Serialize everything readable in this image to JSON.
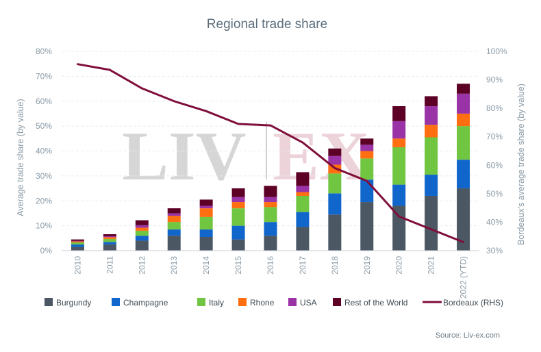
{
  "chart_data": {
    "type": "bar",
    "stacked": true,
    "title": "Regional trade share",
    "ylabel": "Average trade share (by value)",
    "y2label": "Bordeaux's average trade share (by value)",
    "source": "Source: Liv-ex.com",
    "watermark": {
      "left": "LIV",
      "right": "EX"
    },
    "categories": [
      "2010",
      "2011",
      "2012",
      "2013",
      "2014",
      "2015",
      "2016",
      "2017",
      "2018",
      "2019",
      "2020",
      "2021",
      "2022 (YTD)"
    ],
    "ylim": [
      0,
      80
    ],
    "y2lim": [
      30,
      100
    ],
    "yticks": [
      "0%",
      "10%",
      "20%",
      "30%",
      "40%",
      "50%",
      "60%",
      "70%",
      "80%"
    ],
    "y2ticks": [
      "30%",
      "40%",
      "50%",
      "60%",
      "70%",
      "80%",
      "90%",
      "100%"
    ],
    "grid": true,
    "legend_position": "bottom",
    "series": [
      {
        "name": "Burgundy",
        "color": "#4b5762",
        "values": [
          1.5,
          2.5,
          4.0,
          6.0,
          5.5,
          4.5,
          6.0,
          9.5,
          14.5,
          19.5,
          18.0,
          22.0,
          25.0
        ]
      },
      {
        "name": "Champagne",
        "color": "#1166cc",
        "values": [
          1.0,
          1.0,
          2.0,
          2.5,
          3.0,
          5.5,
          5.5,
          6.0,
          8.5,
          9.0,
          8.5,
          8.5,
          11.5
        ]
      },
      {
        "name": "Italy",
        "color": "#70c541",
        "values": [
          0.8,
          1.2,
          2.0,
          3.0,
          5.0,
          7.0,
          6.0,
          6.5,
          8.0,
          8.5,
          15.0,
          15.0,
          13.5
        ]
      },
      {
        "name": "Rhone",
        "color": "#ff6e10",
        "values": [
          0.4,
          0.7,
          1.2,
          2.5,
          3.5,
          2.5,
          2.0,
          1.5,
          3.5,
          3.0,
          3.5,
          5.0,
          5.0
        ]
      },
      {
        "name": "USA",
        "color": "#9933a6",
        "values": [
          0.2,
          0.4,
          1.0,
          1.0,
          1.0,
          2.0,
          2.0,
          2.5,
          3.5,
          2.5,
          7.0,
          7.5,
          8.0
        ]
      },
      {
        "name": "Rest of the World",
        "color": "#5c0026",
        "values": [
          0.6,
          0.8,
          2.0,
          2.0,
          2.5,
          3.5,
          4.5,
          5.5,
          3.0,
          2.5,
          6.0,
          4.0,
          4.0
        ]
      }
    ],
    "line_series": {
      "name": "Bordeaux (RHS)",
      "color": "#7f0e3a",
      "axis": "right",
      "values": [
        95.5,
        93.5,
        87.0,
        82.5,
        79.0,
        74.5,
        74.0,
        68.0,
        59.0,
        54.5,
        42.0,
        37.5,
        33.0
      ]
    }
  }
}
